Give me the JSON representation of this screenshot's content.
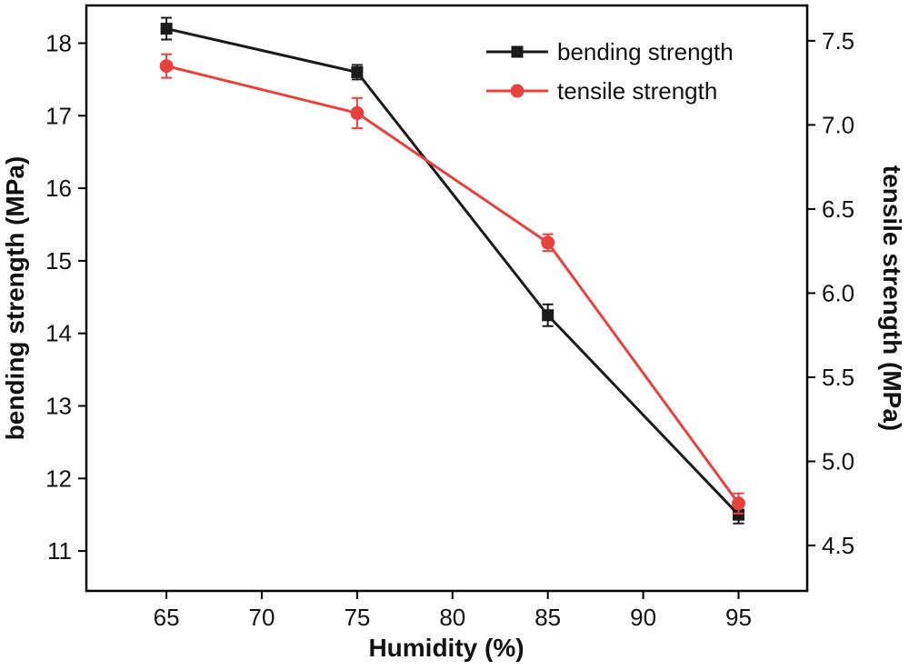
{
  "figure": {
    "background": "#ffffff"
  },
  "chart_data": {
    "type": "line",
    "title": "",
    "xlabel": "Humidity (%)",
    "x": [
      65,
      75,
      85,
      95
    ],
    "x_ticks": [
      65,
      70,
      75,
      80,
      85,
      90,
      95
    ],
    "x_tick_labels": [
      "65",
      "70",
      "75",
      "80",
      "85",
      "90",
      "95"
    ],
    "xlim": [
      60.8,
      98.6
    ],
    "left_axis": {
      "label": "bending strength (MPa)",
      "ticks": [
        11,
        12,
        13,
        14,
        15,
        16,
        17,
        18
      ],
      "tick_labels": [
        "11",
        "12",
        "13",
        "14",
        "15",
        "16",
        "17",
        "18"
      ],
      "lim": [
        10.45,
        18.52
      ]
    },
    "right_axis": {
      "label": "tensile strength (MPa)",
      "ticks": [
        4.5,
        5.0,
        5.5,
        6.0,
        6.5,
        7.0,
        7.5
      ],
      "tick_labels": [
        "4.5",
        "5.0",
        "5.5",
        "6.0",
        "6.5",
        "7.0",
        "7.5"
      ],
      "lim": [
        4.23,
        7.71
      ]
    },
    "series": [
      {
        "name": "bending strength",
        "axis": "left",
        "color": "#1a1a1a",
        "marker": "square",
        "values": [
          18.2,
          17.6,
          14.25,
          11.5
        ],
        "errors": [
          0.15,
          0.1,
          0.15,
          0.12
        ]
      },
      {
        "name": "tensile strength",
        "axis": "right",
        "color": "#e8413d",
        "marker": "circle",
        "values": [
          7.35,
          7.07,
          6.3,
          4.75
        ],
        "errors": [
          0.07,
          0.09,
          0.05,
          0.06
        ]
      }
    ],
    "legend": {
      "entries": [
        "bending strength",
        "tensile strength"
      ],
      "position": "inside-top-right"
    },
    "grid": false
  }
}
